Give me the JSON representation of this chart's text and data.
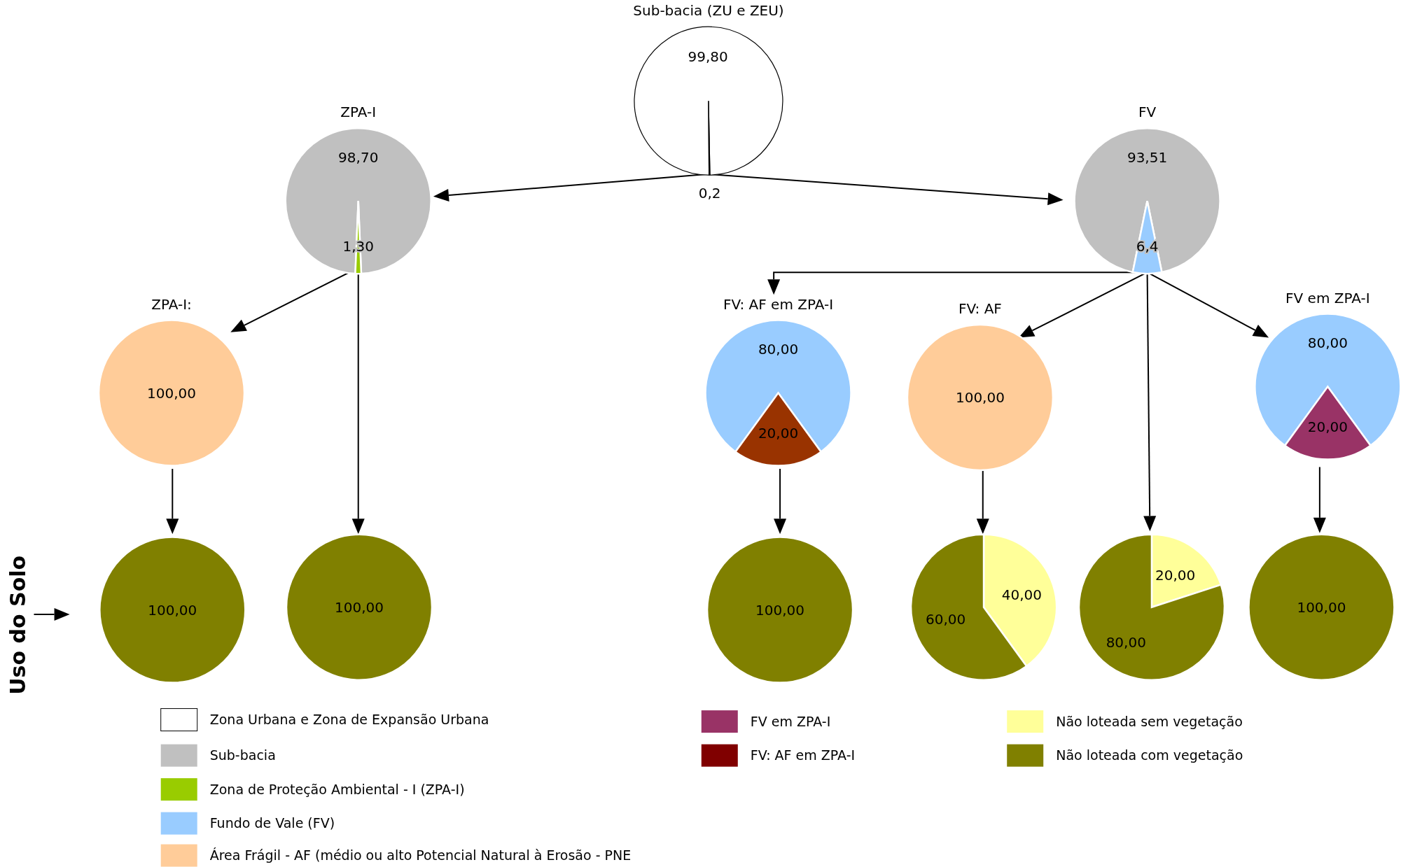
{
  "chart_data": [
    {
      "type": "pie",
      "title": "Sub-bacia (ZU e ZEU)",
      "categories": [
        null,
        null
      ],
      "values": [
        99.8,
        0.2
      ],
      "colors": [
        "#ffffff",
        "#ffffff"
      ],
      "value_labels": [
        "99,80",
        "0,2"
      ]
    },
    {
      "type": "pie",
      "title": "ZPA-I",
      "categories": [
        null,
        null
      ],
      "values": [
        98.7,
        1.3
      ],
      "colors": [
        "#c0c0c0",
        "#99cc00"
      ],
      "value_labels": [
        "98,70",
        "1,30"
      ]
    },
    {
      "type": "pie",
      "title": "FV",
      "categories": [
        null,
        null
      ],
      "values": [
        93.51,
        6.4
      ],
      "colors": [
        "#c0c0c0",
        "#99ccff"
      ],
      "value_labels": [
        "93,51",
        "6,4"
      ]
    },
    {
      "type": "pie",
      "title": "ZPA-I:",
      "categories": [
        null
      ],
      "values": [
        100
      ],
      "colors": [
        "#ffcc99"
      ],
      "value_labels": [
        "100,00"
      ]
    },
    {
      "type": "pie",
      "title": "FV: AF em ZPA-I",
      "categories": [
        null,
        null
      ],
      "values": [
        80,
        20
      ],
      "colors": [
        "#99ccff",
        "#993300"
      ],
      "value_labels": [
        "80,00",
        "20,00"
      ]
    },
    {
      "type": "pie",
      "title": "FV: AF",
      "categories": [
        null
      ],
      "values": [
        100
      ],
      "colors": [
        "#ffcc99"
      ],
      "value_labels": [
        "100,00"
      ]
    },
    {
      "type": "pie",
      "title": "FV em ZPA-I",
      "categories": [
        null,
        null
      ],
      "values": [
        80,
        20
      ],
      "colors": [
        "#99ccff",
        "#993366"
      ],
      "value_labels": [
        "80,00",
        "20,00"
      ]
    },
    {
      "type": "pie",
      "categories": [
        null
      ],
      "values": [
        100
      ],
      "colors": [
        "#808000"
      ],
      "value_labels": [
        "100,00"
      ],
      "annotations": [
        "Uso do Solo"
      ]
    },
    {
      "type": "pie",
      "categories": [
        null
      ],
      "values": [
        100
      ],
      "colors": [
        "#808000"
      ],
      "value_labels": [
        "100,00"
      ]
    },
    {
      "type": "pie",
      "categories": [
        null
      ],
      "values": [
        100
      ],
      "colors": [
        "#808000"
      ],
      "value_labels": [
        "100,00"
      ]
    },
    {
      "type": "pie",
      "categories": [
        null,
        null
      ],
      "values": [
        40,
        60
      ],
      "colors": [
        "#ffff99",
        "#808000"
      ],
      "value_labels": [
        "40,00",
        "60,00"
      ]
    },
    {
      "type": "pie",
      "categories": [
        null,
        null
      ],
      "values": [
        20,
        80
      ],
      "colors": [
        "#ffff99",
        "#808000"
      ],
      "value_labels": [
        "20,00",
        "80,00"
      ]
    },
    {
      "type": "pie",
      "categories": [
        null
      ],
      "values": [
        100
      ],
      "colors": [
        "#808000"
      ],
      "value_labels": [
        "100,00"
      ]
    },
    {
      "type": "other",
      "categories": [
        "Zona Urbana e Zona de Expansão Urbana",
        "Sub-bacia",
        "Zona de Proteção Ambiental - I (ZPA-I)",
        "Fundo de Vale (FV)",
        "Área Frágil - AF (médio ou alto Potencial Natural à Erosão - PNE",
        "FV em ZPA-I",
        "FV: AF em ZPA-I",
        "Não loteada sem vegetação",
        "Não loteada com vegetação"
      ],
      "colors": [
        "#ffffff",
        "#c0c0c0",
        "#99cc00",
        "#99ccff",
        "#ffcc99",
        "#993366",
        "#800000",
        "#ffff99",
        "#808000"
      ]
    }
  ]
}
